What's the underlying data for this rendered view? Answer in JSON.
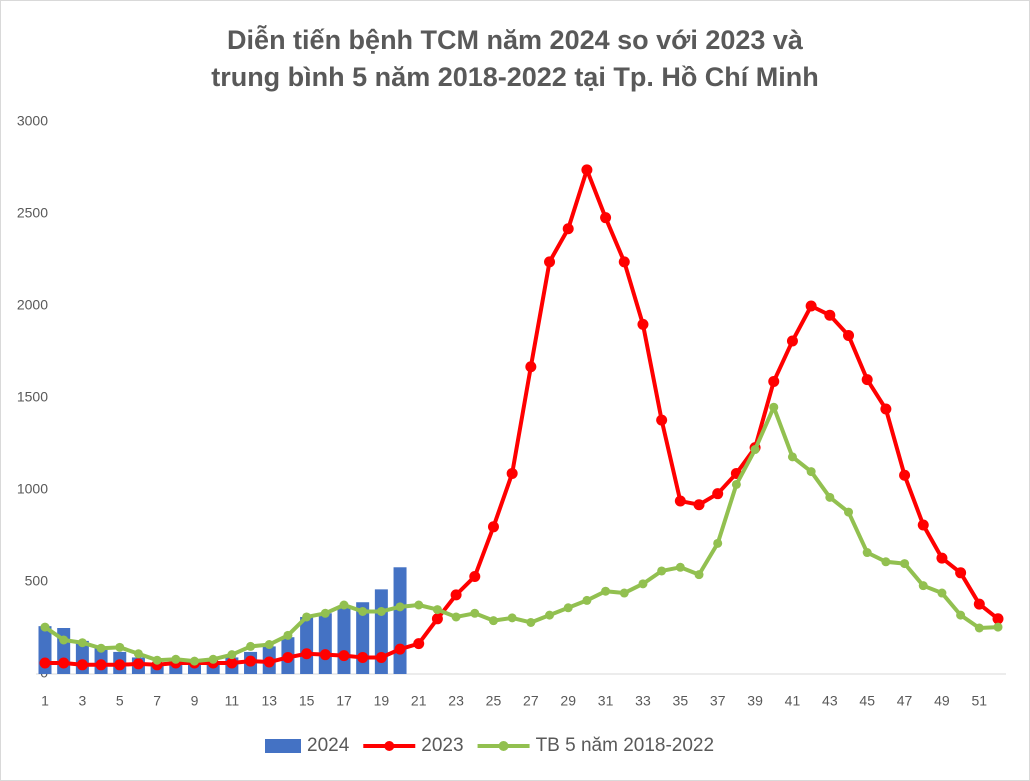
{
  "chart_data": {
    "type": "bar-line",
    "title": [
      "Diễn tiến bệnh TCM năm 2024 so với 2023 và",
      "trung bình 5 năm 2018-2022 tại Tp. Hồ Chí Minh"
    ],
    "categories": [
      "1",
      null,
      "3",
      null,
      "5",
      null,
      "7",
      null,
      "9",
      null,
      "11",
      null,
      "13",
      null,
      "15",
      null,
      "17",
      null,
      "19",
      null,
      "21",
      null,
      "23",
      null,
      "25",
      null,
      "27",
      null,
      "29",
      null,
      "31",
      null,
      "33",
      null,
      "35",
      null,
      "37",
      null,
      "39",
      null,
      "41",
      null,
      "43",
      null,
      "45",
      null,
      "47",
      null,
      "49",
      null,
      "51",
      null
    ],
    "series": [
      {
        "name": "2024",
        "kind": "bar",
        "color": "#4472c4",
        "values": [
          260,
          250,
          180,
          150,
          120,
          90,
          60,
          70,
          60,
          60,
          90,
          120,
          150,
          200,
          310,
          330,
          360,
          390,
          460,
          580,
          null,
          null,
          null,
          null,
          null,
          null,
          null,
          null,
          null,
          null,
          null,
          null,
          null,
          null,
          null,
          null,
          null,
          null,
          null,
          null,
          null,
          null,
          null,
          null,
          null,
          null,
          null,
          null,
          null,
          null,
          null,
          null
        ]
      },
      {
        "name": "2023",
        "kind": "line",
        "color": "#ff0000",
        "values": [
          60,
          60,
          50,
          50,
          50,
          55,
          50,
          60,
          60,
          60,
          60,
          70,
          65,
          90,
          110,
          105,
          100,
          90,
          90,
          135,
          165,
          300,
          430,
          530,
          800,
          1090,
          1670,
          2240,
          2420,
          2740,
          2480,
          2240,
          1900,
          1380,
          940,
          920,
          980,
          1090,
          1230,
          1590,
          1810,
          2000,
          1950,
          1840,
          1600,
          1440,
          1080,
          810,
          630,
          550,
          380,
          300
        ]
      },
      {
        "name": "TB 5 năm 2018-2022",
        "kind": "line",
        "color": "#92c050",
        "values": [
          255,
          185,
          170,
          140,
          145,
          110,
          75,
          80,
          70,
          80,
          105,
          150,
          160,
          210,
          310,
          330,
          375,
          340,
          340,
          365,
          375,
          350,
          310,
          330,
          290,
          305,
          280,
          320,
          360,
          400,
          450,
          440,
          490,
          560,
          580,
          540,
          710,
          1030,
          1220,
          1450,
          1180,
          1100,
          960,
          880,
          660,
          610,
          600,
          480,
          440,
          320,
          250,
          255
        ]
      }
    ],
    "ylim": [
      0,
      3000
    ],
    "yticks": [
      0,
      500,
      1000,
      1500,
      2000,
      2500,
      3000
    ],
    "grid": false,
    "legend": "bottom"
  }
}
